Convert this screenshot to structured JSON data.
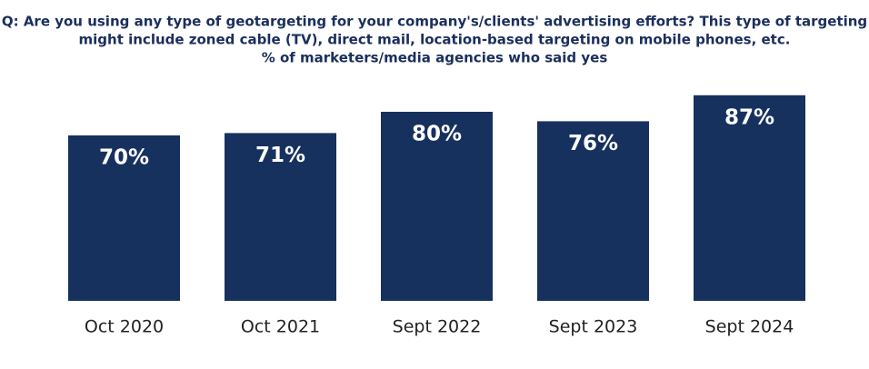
{
  "chart_data": {
    "type": "bar",
    "title": [
      "Q: Are you using any type of geotargeting for your company's/clients'  advertising efforts?  This type of targeting",
      "might include zoned cable (TV), direct mail, location-based targeting on mobile phones, etc."
    ],
    "subtitle": "% of marketers/media agencies who said yes",
    "categories": [
      "Oct 2020",
      "Oct 2021",
      "Sept 2022",
      "Sept 2023",
      "Sept 2024"
    ],
    "values": [
      70,
      71,
      80,
      76,
      87
    ],
    "value_labels": [
      "70%",
      "71%",
      "80%",
      "76%",
      "87%"
    ],
    "color": "#17315f"
  }
}
